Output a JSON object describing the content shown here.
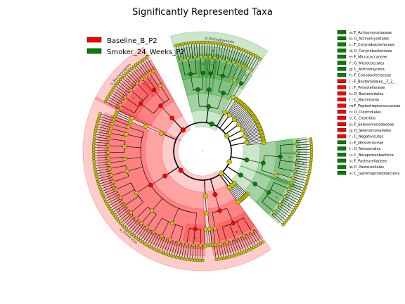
{
  "chart_data": {
    "type": "cladogram",
    "title": "Significantly Represented Taxa",
    "groups": [
      {
        "name": "Baseline_B_P2",
        "color": "#ff0000"
      },
      {
        "name": "Smoker_24_Weeks_P2",
        "color": "#008000"
      }
    ],
    "clades": [
      {
        "key": "a",
        "name": "F_Actinomycetaceae",
        "rank": "family",
        "group": "Smoker_24_Weeks_P2"
      },
      {
        "key": "b",
        "name": "O_Actinomycetales",
        "rank": "order",
        "group": "Smoker_24_Weeks_P2"
      },
      {
        "key": "c",
        "name": "F_Corynebacteriaceae",
        "rank": "family",
        "group": "Smoker_24_Weeks_P2"
      },
      {
        "key": "d",
        "name": "O_Corynebacteriales",
        "rank": "order",
        "group": "Smoker_24_Weeks_P2"
      },
      {
        "key": "e",
        "name": "F_Micrococcaceae",
        "rank": "family",
        "group": "Smoker_24_Weeks_P2"
      },
      {
        "key": "f",
        "name": "O_Micrococcales",
        "rank": "order",
        "group": "Smoker_24_Weeks_P2"
      },
      {
        "key": "g",
        "name": "C_Actinomycetia",
        "rank": "class",
        "group": "Smoker_24_Weeks_P2"
      },
      {
        "key": "h",
        "name": "F_Coriobacteriaceae",
        "rank": "family",
        "group": "Smoker_24_Weeks_P2"
      },
      {
        "key": "i",
        "name": "F_Bacteroidales__F_2_",
        "rank": "family",
        "group": "Baseline_B_P2"
      },
      {
        "key": "j",
        "name": "F_Prevotellaceae",
        "rank": "family",
        "group": "Baseline_B_P2"
      },
      {
        "key": "k",
        "name": "O_Bacteroidales",
        "rank": "order",
        "group": "Baseline_B_P2"
      },
      {
        "key": "l",
        "name": "C_Bacteroidia",
        "rank": "class",
        "group": "Baseline_B_P2"
      },
      {
        "key": "m",
        "name": "F_Peptostreptococcaceae",
        "rank": "family",
        "group": "Baseline_B_P2"
      },
      {
        "key": "n",
        "name": "O_Clostridiales",
        "rank": "order",
        "group": "Baseline_B_P2"
      },
      {
        "key": "o",
        "name": "C_Clostridia",
        "rank": "class",
        "group": "Baseline_B_P2"
      },
      {
        "key": "p",
        "name": "F_Selenomonadaceae",
        "rank": "family",
        "group": "Baseline_B_P2"
      },
      {
        "key": "q",
        "name": "O_Selenomonadales",
        "rank": "order",
        "group": "Baseline_B_P2"
      },
      {
        "key": "r",
        "name": "C_Negativicutes",
        "rank": "class",
        "group": "Baseline_B_P2"
      },
      {
        "key": "s",
        "name": "F_Neisseriaceae",
        "rank": "family",
        "group": "Smoker_24_Weeks_P2"
      },
      {
        "key": "t",
        "name": "O_Neisseriales",
        "rank": "order",
        "group": "Smoker_24_Weeks_P2"
      },
      {
        "key": "u",
        "name": "C_Betaproteobacteria",
        "rank": "class",
        "group": "Smoker_24_Weeks_P2"
      },
      {
        "key": "v",
        "name": "F_Pasteurellaceae",
        "rank": "family",
        "group": "Smoker_24_Weeks_P2"
      },
      {
        "key": "w",
        "name": "O_Pasteurellales",
        "rank": "order",
        "group": "Smoker_24_Weeks_P2"
      },
      {
        "key": "x",
        "name": "C_Gammaproteobacteria",
        "rank": "class",
        "group": "Smoker_24_Weeks_P2"
      }
    ],
    "phyla": [
      {
        "name": "p_Bacteroidetes",
        "group": "Baseline_B_P2"
      },
      {
        "name": "p_Actinobacteria",
        "group": "Smoker_24_Weeks_P2"
      },
      {
        "name": "p_Firmicutes",
        "group": "Baseline_B_P2"
      }
    ]
  }
}
